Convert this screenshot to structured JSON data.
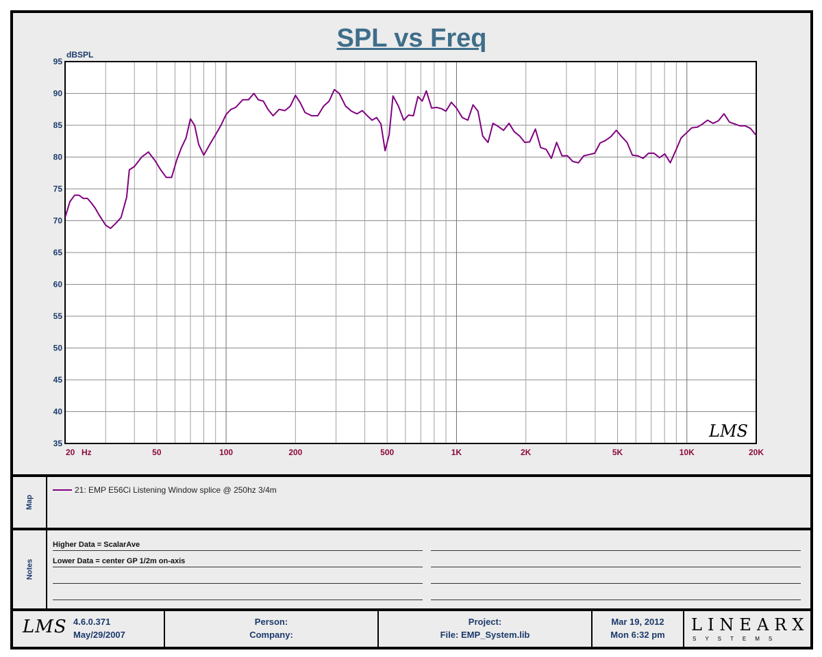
{
  "chart": {
    "title": "SPL vs Freq",
    "watermark": "LMS"
  },
  "chart_data": {
    "type": "line",
    "title": "SPL vs Freq",
    "ylabel": "dBSPL",
    "xlabel": "Hz",
    "x_scale": "log",
    "xlim": [
      20,
      20000
    ],
    "ylim": [
      35,
      95
    ],
    "grid": true,
    "y_ticks": [
      "95",
      "90",
      "85",
      "80",
      "75",
      "70",
      "65",
      "60",
      "55",
      "50",
      "45",
      "40",
      "35"
    ],
    "x_ticks": [
      {
        "v": 20,
        "label": "20"
      },
      {
        "v": 50,
        "label": "50"
      },
      {
        "v": 100,
        "label": "100"
      },
      {
        "v": 200,
        "label": "200"
      },
      {
        "v": 500,
        "label": "500"
      },
      {
        "v": 1000,
        "label": "1K"
      },
      {
        "v": 2000,
        "label": "2K"
      },
      {
        "v": 5000,
        "label": "5K"
      },
      {
        "v": 10000,
        "label": "10K"
      },
      {
        "v": 20000,
        "label": "20K"
      }
    ],
    "series": [
      {
        "name": "21: EMP E56Ci Listening Window splice @ 250hz 3/4m",
        "color": "#800080",
        "points": [
          [
            20,
            70.5
          ],
          [
            21,
            73
          ],
          [
            22,
            74
          ],
          [
            23,
            74
          ],
          [
            24,
            73.5
          ],
          [
            25,
            73.5
          ],
          [
            26,
            72.8
          ],
          [
            27,
            72
          ],
          [
            28,
            71
          ],
          [
            30,
            69.3
          ],
          [
            31.5,
            68.8
          ],
          [
            33,
            69.5
          ],
          [
            35,
            70.5
          ],
          [
            37,
            73.7
          ],
          [
            38,
            78
          ],
          [
            40,
            78.5
          ],
          [
            43,
            80
          ],
          [
            46,
            80.8
          ],
          [
            49,
            79.5
          ],
          [
            52,
            78
          ],
          [
            55,
            76.8
          ],
          [
            58,
            76.8
          ],
          [
            61,
            79.5
          ],
          [
            64,
            81.5
          ],
          [
            67,
            83
          ],
          [
            70,
            86
          ],
          [
            73,
            85
          ],
          [
            76,
            82
          ],
          [
            80,
            80.3
          ],
          [
            85,
            82
          ],
          [
            90,
            83.5
          ],
          [
            95,
            85
          ],
          [
            100,
            86.7
          ],
          [
            105,
            87.5
          ],
          [
            110,
            87.8
          ],
          [
            118,
            89
          ],
          [
            125,
            89
          ],
          [
            132,
            90
          ],
          [
            138,
            89
          ],
          [
            145,
            88.8
          ],
          [
            152,
            87.5
          ],
          [
            160,
            86.5
          ],
          [
            170,
            87.5
          ],
          [
            180,
            87.3
          ],
          [
            190,
            88
          ],
          [
            200,
            89.7
          ],
          [
            210,
            88.5
          ],
          [
            220,
            87
          ],
          [
            235,
            86.5
          ],
          [
            250,
            86.5
          ],
          [
            265,
            88
          ],
          [
            280,
            88.8
          ],
          [
            295,
            90.6
          ],
          [
            310,
            90
          ],
          [
            330,
            88
          ],
          [
            350,
            87.2
          ],
          [
            370,
            86.8
          ],
          [
            390,
            87.3
          ],
          [
            410,
            86.5
          ],
          [
            430,
            85.8
          ],
          [
            450,
            86.2
          ],
          [
            470,
            85.2
          ],
          [
            490,
            81
          ],
          [
            510,
            83.5
          ],
          [
            530,
            89.6
          ],
          [
            560,
            88
          ],
          [
            590,
            85.8
          ],
          [
            620,
            86.6
          ],
          [
            650,
            86.5
          ],
          [
            680,
            89.5
          ],
          [
            710,
            88.8
          ],
          [
            740,
            90.4
          ],
          [
            780,
            87.7
          ],
          [
            820,
            87.8
          ],
          [
            860,
            87.6
          ],
          [
            900,
            87.2
          ],
          [
            950,
            88.6
          ],
          [
            1000,
            87.7
          ],
          [
            1060,
            86.2
          ],
          [
            1120,
            85.8
          ],
          [
            1180,
            88.2
          ],
          [
            1240,
            87.2
          ],
          [
            1300,
            83.3
          ],
          [
            1370,
            82.3
          ],
          [
            1440,
            85.3
          ],
          [
            1520,
            84.8
          ],
          [
            1600,
            84.2
          ],
          [
            1690,
            85.3
          ],
          [
            1780,
            84
          ],
          [
            1880,
            83.3
          ],
          [
            1980,
            82.3
          ],
          [
            2080,
            82.4
          ],
          [
            2200,
            84.4
          ],
          [
            2320,
            81.5
          ],
          [
            2450,
            81.2
          ],
          [
            2580,
            79.8
          ],
          [
            2720,
            82.3
          ],
          [
            2870,
            80.2
          ],
          [
            3030,
            80.2
          ],
          [
            3200,
            79.3
          ],
          [
            3380,
            79.1
          ],
          [
            3570,
            80.2
          ],
          [
            3770,
            80.4
          ],
          [
            3980,
            80.6
          ],
          [
            4200,
            82.2
          ],
          [
            4430,
            82.6
          ],
          [
            4680,
            83.2
          ],
          [
            4940,
            84.2
          ],
          [
            5210,
            83.2
          ],
          [
            5500,
            82.3
          ],
          [
            5800,
            80.3
          ],
          [
            6120,
            80.2
          ],
          [
            6460,
            79.8
          ],
          [
            6820,
            80.6
          ],
          [
            7200,
            80.6
          ],
          [
            7600,
            79.9
          ],
          [
            8020,
            80.5
          ],
          [
            8470,
            79.1
          ],
          [
            8940,
            81
          ],
          [
            9440,
            83
          ],
          [
            9960,
            83.8
          ],
          [
            10500,
            84.6
          ],
          [
            11100,
            84.7
          ],
          [
            11700,
            85.2
          ],
          [
            12300,
            85.8
          ],
          [
            13000,
            85.3
          ],
          [
            13700,
            85.7
          ],
          [
            14500,
            86.8
          ],
          [
            15300,
            85.5
          ],
          [
            16100,
            85.2
          ],
          [
            17000,
            84.9
          ],
          [
            17900,
            84.9
          ],
          [
            18900,
            84.5
          ],
          [
            20000,
            83.4
          ],
          [
            21000,
            84.7
          ],
          [
            22000,
            84.5
          ],
          [
            23000,
            84.2
          ],
          [
            24000,
            83.5
          ],
          [
            25000,
            83.5
          ]
        ]
      }
    ]
  },
  "legend": {
    "entry": "21: EMP E56Ci Listening Window splice @ 250hz 3/4m",
    "color": "#800080"
  },
  "map": {
    "label": "Map"
  },
  "notes": {
    "label": "Notes",
    "line1": "Higher Data = ScalarAve",
    "line2": "Lower  Data = center GP 1/2m on-axis"
  },
  "footer": {
    "logo": "LMS",
    "version": "4.6.0.371",
    "version_date": "May/29/2007",
    "person_label": "Person:",
    "company_label": "Company:",
    "project_label": "Project:",
    "file_label": "File: EMP_System.lib",
    "date": "Mar 19, 2012",
    "time": "Mon  6:32 pm",
    "brand_top": "LINEARX",
    "brand_bottom": "SYSTEMS"
  }
}
